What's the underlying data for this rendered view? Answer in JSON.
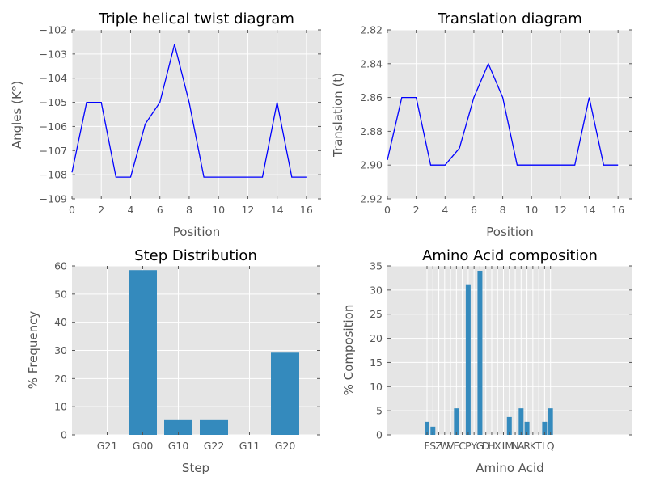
{
  "chart_data": [
    {
      "type": "line",
      "title": "Triple helical twist diagram",
      "xlabel": "Position",
      "ylabel": "Angles (K°)",
      "xlim": [
        0,
        17
      ],
      "ylim": [
        -109,
        -102
      ],
      "xticks": [
        0,
        2,
        4,
        6,
        8,
        10,
        12,
        14,
        16
      ],
      "yticks": [
        -109,
        -108,
        -107,
        -106,
        -105,
        -104,
        -103,
        -102
      ],
      "x": [
        0,
        1,
        2,
        3,
        4,
        5,
        6,
        7,
        8,
        9,
        10,
        11,
        12,
        13,
        14,
        15,
        16
      ],
      "y": [
        -107.9,
        -105.0,
        -105.0,
        -108.1,
        -108.1,
        -105.9,
        -105.0,
        -102.6,
        -105.0,
        -108.1,
        -108.1,
        -108.1,
        -108.1,
        -108.1,
        -105.0,
        -108.1,
        -108.1
      ],
      "color": "#0000ff",
      "grid": true
    },
    {
      "type": "line",
      "title": "Translation diagram",
      "xlabel": "Position",
      "ylabel": "Translation (t)",
      "xlim": [
        0,
        17
      ],
      "ylim": [
        2.92,
        2.82
      ],
      "inverted_y": true,
      "xticks": [
        0,
        2,
        4,
        6,
        8,
        10,
        12,
        14,
        16
      ],
      "yticks": [
        2.82,
        2.84,
        2.86,
        2.88,
        2.9,
        2.92
      ],
      "ytick_labels": [
        "2.82",
        "2.84",
        "2.86",
        "2.88",
        "2.90",
        "2.92"
      ],
      "x": [
        0,
        1,
        2,
        3,
        4,
        5,
        6,
        7,
        8,
        9,
        10,
        11,
        12,
        13,
        14,
        15,
        16
      ],
      "y": [
        2.897,
        2.86,
        2.86,
        2.9,
        2.9,
        2.89,
        2.86,
        2.84,
        2.86,
        2.9,
        2.9,
        2.9,
        2.9,
        2.9,
        2.86,
        2.9,
        2.9
      ],
      "color": "#0000ff",
      "grid": true
    },
    {
      "type": "bar",
      "title": "Step Distribution",
      "xlabel": "Step",
      "ylabel": "% Frequency",
      "categories": [
        "G21",
        "G00",
        "G10",
        "G22",
        "G11",
        "G20"
      ],
      "values": [
        0,
        58.5,
        5.5,
        5.5,
        0,
        29.2
      ],
      "ylim": [
        0,
        60
      ],
      "yticks": [
        0,
        10,
        20,
        30,
        40,
        50,
        60
      ],
      "color": "#348abd",
      "grid": true
    },
    {
      "type": "bar",
      "title": "Amino Acid composition",
      "xlabel": "Amino Acid",
      "ylabel": "% Composition",
      "categories": [
        "F",
        "S",
        "Z",
        "W",
        "V",
        "E",
        "C",
        "P",
        "Y",
        "G",
        "D",
        "H",
        "X",
        "I",
        "M",
        "N",
        "A",
        "R",
        "K",
        "T",
        "L",
        "Q"
      ],
      "values": [
        2.7,
        1.7,
        0,
        0,
        0,
        5.5,
        0,
        31.2,
        0,
        34.0,
        0,
        0,
        0,
        0,
        3.7,
        0,
        5.5,
        2.7,
        0,
        0,
        2.7,
        5.5
      ],
      "ylim": [
        0,
        35
      ],
      "yticks": [
        0,
        5,
        10,
        15,
        20,
        25,
        30,
        35
      ],
      "color": "#348abd",
      "grid": true
    }
  ]
}
